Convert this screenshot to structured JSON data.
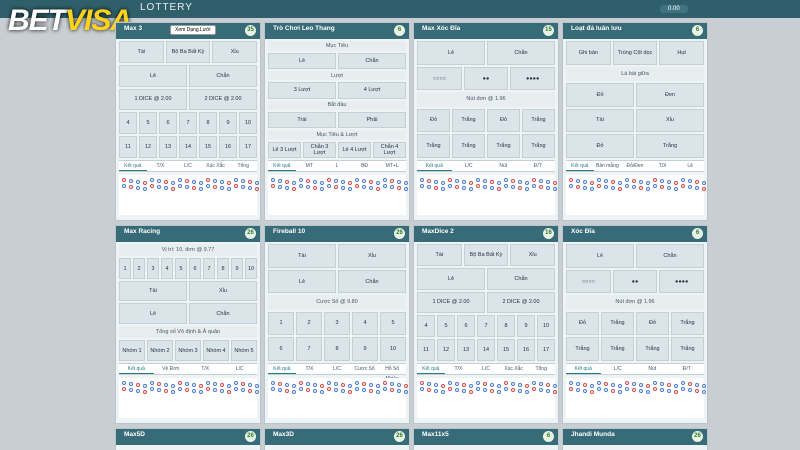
{
  "header": {
    "brand_a": "BET",
    "brand_b": "VISA",
    "section": "LOTTERY",
    "tooltip": "Xem Dạng Lưới",
    "balance": "0.00"
  },
  "panels": [
    {
      "title": "Max 3",
      "count": "35",
      "rows": [
        [
          "Tài",
          "Bộ Ba Bất Kỳ",
          "Xỉu"
        ],
        [
          "Lẻ",
          "Chẵn"
        ],
        [
          "1 DICE @ 2.00",
          "2 DICE @ 2.00"
        ],
        [
          "4",
          "5",
          "6",
          "7",
          "8",
          "9",
          "10"
        ],
        [
          "11",
          "12",
          "13",
          "14",
          "15",
          "16",
          "17"
        ]
      ],
      "tabs": [
        "Kết quả",
        "T/X",
        "L/C",
        "Xúc Xắc",
        "Tổng"
      ]
    },
    {
      "title": "Trò Chơi Leo Thang",
      "count": "6",
      "rows": [
        [
          "Mục Tiêu"
        ],
        [
          "Lẻ",
          "Chẵn"
        ],
        [
          "Lượt"
        ],
        [
          "3 Lượt",
          "4 Lượt"
        ],
        [
          "Bắt đầu"
        ],
        [
          "Trái",
          "Phải"
        ],
        [
          "Mục Tiêu & Lượt"
        ],
        [
          "Lẻ 3 Lượt",
          "Chẵn 3 Lượt",
          "Lẻ 4 Lượt",
          "Chẵn 4 Lượt"
        ]
      ],
      "tabs": [
        "Kết quả",
        "MT",
        "L",
        "BĐ",
        "MT+L"
      ]
    },
    {
      "title": "Max Xóc Đĩa",
      "count": "15",
      "rows": [
        [
          "Lẻ",
          "Chẵn"
        ],
        [
          "○○○○",
          "●●",
          "●●●●"
        ],
        [
          "Nút đơn @ 1.96"
        ],
        [
          "Đỏ",
          "Trắng",
          "Đỏ",
          "Trắng"
        ],
        [
          "Trắng",
          "Trắng",
          "Trắng",
          "Trắng"
        ]
      ],
      "tabs": [
        "Kết quả",
        "L/C",
        "Nút",
        "Đ/T"
      ]
    },
    {
      "title": "Loạt đá luân lưu",
      "count": "6",
      "rows": [
        [
          "Ghi bàn",
          "Trúng Cột dọc",
          "Hụt"
        ],
        [
          "Lá bài giữa"
        ],
        [
          "Đỏ",
          "Đen"
        ],
        [
          "Tài",
          "Xỉu"
        ],
        [
          "Đỏ",
          "Trắng"
        ]
      ],
      "tabs": [
        "Kết quả",
        "Bản mẫng",
        "Đỏ/Đen",
        "T/X",
        "Lẻ"
      ]
    },
    {
      "title": "Max Racing",
      "count": "26",
      "rows": [
        [
          "Vị trí: 10, đơn @ 9.77"
        ],
        [
          "1",
          "2",
          "3",
          "4",
          "5",
          "6",
          "7",
          "8",
          "9",
          "10"
        ],
        [
          "Tài",
          "Xỉu"
        ],
        [
          "Lẻ",
          "Chẵn"
        ],
        [
          "Tổng số Vô định & Ả quân"
        ],
        [
          "Nhóm 1",
          "Nhóm 2",
          "Nhóm 3",
          "Nhóm 4",
          "Nhóm 5"
        ]
      ],
      "tabs": [
        "Kết quả",
        "Về Đơn",
        "T/X",
        "L/C"
      ]
    },
    {
      "title": "Fireball 10",
      "count": "26",
      "rows": [
        [
          "Tài",
          "Xỉu"
        ],
        [
          "Lẻ",
          "Chẵn"
        ],
        [
          "Cược Số @ 9.80"
        ],
        [
          "1",
          "2",
          "3",
          "4",
          "5"
        ],
        [
          "6",
          "7",
          "8",
          "9",
          "10"
        ]
      ],
      "tabs": [
        "Kết quả",
        "T/X",
        "L/C",
        "Cược Số",
        "Hỗ Số Nhiều"
      ]
    },
    {
      "title": "MaxDice 2",
      "count": "16",
      "rows": [
        [
          "Tài",
          "Bộ Ba Bất Kỳ",
          "Xỉu"
        ],
        [
          "Lẻ",
          "Chẵn"
        ],
        [
          "1 DICE @ 2.00",
          "2 DICE @ 2.00"
        ],
        [
          "4",
          "5",
          "6",
          "7",
          "8",
          "9",
          "10"
        ],
        [
          "11",
          "12",
          "13",
          "14",
          "15",
          "16",
          "17"
        ]
      ],
      "tabs": [
        "Kết quả",
        "T/X",
        "L/C",
        "Xúc Xắc",
        "Tổng"
      ]
    },
    {
      "title": "Xóc Đĩa",
      "count": "6",
      "rows": [
        [
          "Lẻ",
          "Chẵn"
        ],
        [
          "○○○○",
          "●●",
          "●●●●"
        ],
        [
          "Nút đơn @ 1.96"
        ],
        [
          "Đỏ",
          "Trắng",
          "Đỏ",
          "Trắng"
        ],
        [
          "Trắng",
          "Trắng",
          "Trắng",
          "Trắng"
        ]
      ],
      "tabs": [
        "Kết quả",
        "L/C",
        "Nút",
        "Đ/T"
      ]
    },
    {
      "title": "Max5D",
      "count": "26",
      "rows": [],
      "tabs": []
    },
    {
      "title": "Max3D",
      "count": "26",
      "rows": [],
      "tabs": []
    },
    {
      "title": "Max11x5",
      "count": "6",
      "rows": [],
      "tabs": []
    },
    {
      "title": "Jhandi Munda",
      "count": "26",
      "rows": [],
      "tabs": []
    }
  ]
}
